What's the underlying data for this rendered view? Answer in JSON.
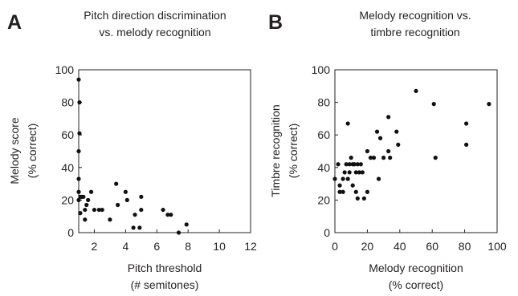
{
  "chart_data": [
    {
      "panel": "A",
      "type": "scatter",
      "title": [
        "Pitch direction discrimination",
        "vs. melody recognition"
      ],
      "xlabel": [
        "Pitch threshold",
        "(# semitones)"
      ],
      "ylabel": [
        "Melody score",
        "(% correct)"
      ],
      "xlim": [
        1,
        12
      ],
      "ylim": [
        0,
        100
      ],
      "xticks": [
        "2",
        "4",
        "6",
        "8",
        "10",
        "12"
      ],
      "yticks": [
        "0",
        "20",
        "40",
        "60",
        "80",
        "100"
      ],
      "grid": false,
      "x": [
        1.0,
        1.05,
        1.05,
        1.0,
        1.0,
        1.0,
        1.0,
        1.1,
        1.1,
        1.2,
        1.3,
        1.4,
        1.4,
        1.5,
        1.6,
        1.8,
        2.0,
        2.3,
        2.5,
        3.0,
        3.4,
        3.5,
        4.0,
        4.1,
        4.5,
        4.6,
        4.9,
        5.0,
        5.0,
        6.4,
        6.7,
        6.9,
        7.4,
        7.9
      ],
      "y": [
        94,
        80,
        61,
        50,
        33,
        25,
        20,
        22,
        12,
        22,
        22,
        14,
        8,
        17,
        20,
        25,
        14,
        14,
        14,
        8,
        30,
        17,
        25,
        20,
        3,
        11,
        3,
        14,
        22,
        14,
        11,
        11,
        0,
        5
      ]
    },
    {
      "panel": "B",
      "type": "scatter",
      "title": [
        "Melody recognition vs.",
        "timbre recognition"
      ],
      "xlabel": [
        "Melody recognition",
        "(% correct)"
      ],
      "ylabel": [
        "Timbre recognition",
        "(% correct)"
      ],
      "xlim": [
        0,
        100
      ],
      "ylim": [
        0,
        100
      ],
      "xticks": [
        "0",
        "20",
        "40",
        "60",
        "80",
        "100"
      ],
      "yticks": [
        "0",
        "20",
        "40",
        "60",
        "80",
        "100"
      ],
      "grid": false,
      "x": [
        0,
        2,
        3,
        3,
        5,
        5,
        6,
        7,
        8,
        8,
        9,
        9,
        10,
        11,
        11,
        12,
        13,
        13,
        14,
        14,
        15,
        16,
        17,
        18,
        20,
        20,
        22,
        24,
        26,
        27,
        28,
        30,
        33,
        33,
        34,
        38,
        39,
        50,
        61,
        62,
        81,
        81,
        95
      ],
      "y": [
        33,
        42,
        29,
        25,
        33,
        25,
        37,
        42,
        67,
        33,
        42,
        37,
        46,
        42,
        29,
        42,
        25,
        37,
        21,
        42,
        37,
        42,
        37,
        21,
        50,
        25,
        46,
        46,
        62,
        33,
        58,
        46,
        50,
        71,
        46,
        62,
        54,
        87,
        79,
        46,
        67,
        54,
        79
      ]
    }
  ],
  "panels": {
    "a": {
      "letter": "A"
    },
    "b": {
      "letter": "B"
    }
  }
}
